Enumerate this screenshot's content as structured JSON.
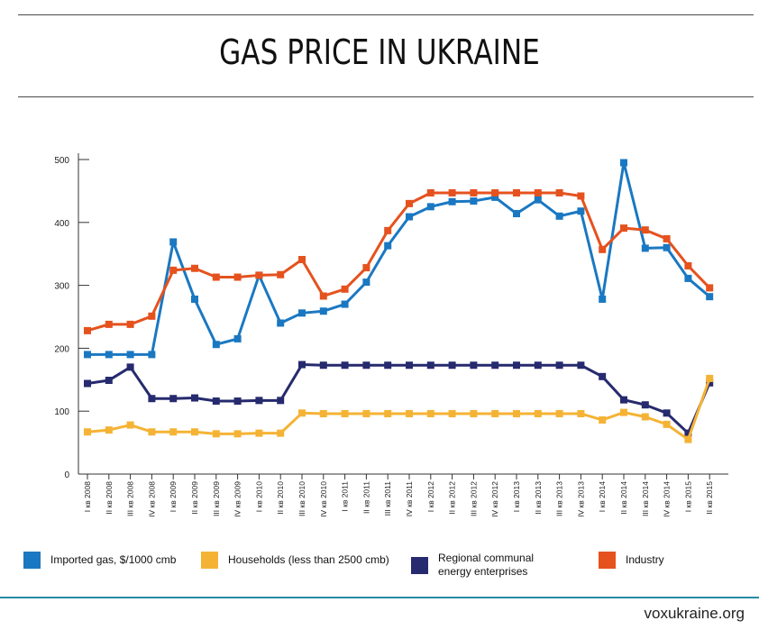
{
  "header": {
    "title": "GAS PRICE IN UKRAINE"
  },
  "footer": {
    "source": "voxukraine.org"
  },
  "colors": {
    "imported": "#1a78c2",
    "households": "#f5b335",
    "regional": "#262a6e",
    "industry": "#e5521e"
  },
  "chart_data": {
    "type": "line",
    "title": "GAS PRICE IN UKRAINE",
    "xlabel": "",
    "ylabel": "",
    "ylim": [
      0,
      500
    ],
    "yticks": [
      0,
      100,
      200,
      300,
      400,
      500
    ],
    "grid": false,
    "legend_position": "bottom",
    "categories": [
      "I кв 2008",
      "II кв 2008",
      "III кв 2008",
      "IV кв 2008",
      "I кв 2009",
      "II кв 2009",
      "III кв 2009",
      "IV кв 2009",
      "I кв 2010",
      "II кв 2010",
      "III кв 2010",
      "IV кв 2010",
      "I кв 2011",
      "II кв 2011",
      "III кв 2011",
      "IV кв 2011",
      "I кв 2012",
      "II кв 2012",
      "III кв 2012",
      "IV кв 2012",
      "I кв 2013",
      "II кв 2013",
      "III кв 2013",
      "IV кв 2013",
      "I кв 2014",
      "II кв 2014",
      "III кв 2014",
      "IV кв 2014",
      "I кв 2015",
      "II кв 2015"
    ],
    "series": [
      {
        "name": "Imported gas, $/1000 cmb",
        "color": "#1a78c2",
        "values": [
          190,
          190,
          190,
          190,
          369,
          278,
          206,
          215,
          316,
          240,
          256,
          259,
          270,
          305,
          363,
          409,
          425,
          433,
          434,
          440,
          414,
          436,
          410,
          418,
          278,
          495,
          359,
          360,
          311,
          282
        ]
      },
      {
        "name": "Households (less than 2500 cmb)",
        "color": "#f5b335",
        "values": [
          67,
          70,
          78,
          67,
          67,
          67,
          64,
          64,
          65,
          65,
          97,
          96,
          96,
          96,
          96,
          96,
          96,
          96,
          96,
          96,
          96,
          96,
          96,
          96,
          86,
          98,
          91,
          79,
          55,
          152
        ]
      },
      {
        "name": "Regional communal energy enterprises",
        "color": "#262a6e",
        "values": [
          144,
          149,
          170,
          120,
          120,
          121,
          116,
          116,
          117,
          117,
          174,
          173,
          173,
          173,
          173,
          173,
          173,
          173,
          173,
          173,
          173,
          173,
          173,
          173,
          155,
          118,
          110,
          97,
          65,
          145
        ]
      },
      {
        "name": "Industry",
        "color": "#e5521e",
        "values": [
          228,
          238,
          238,
          251,
          324,
          327,
          313,
          313,
          316,
          317,
          341,
          283,
          294,
          328,
          387,
          430,
          447,
          447,
          447,
          447,
          447,
          447,
          447,
          442,
          357,
          391,
          388,
          374,
          331,
          296
        ]
      }
    ]
  }
}
